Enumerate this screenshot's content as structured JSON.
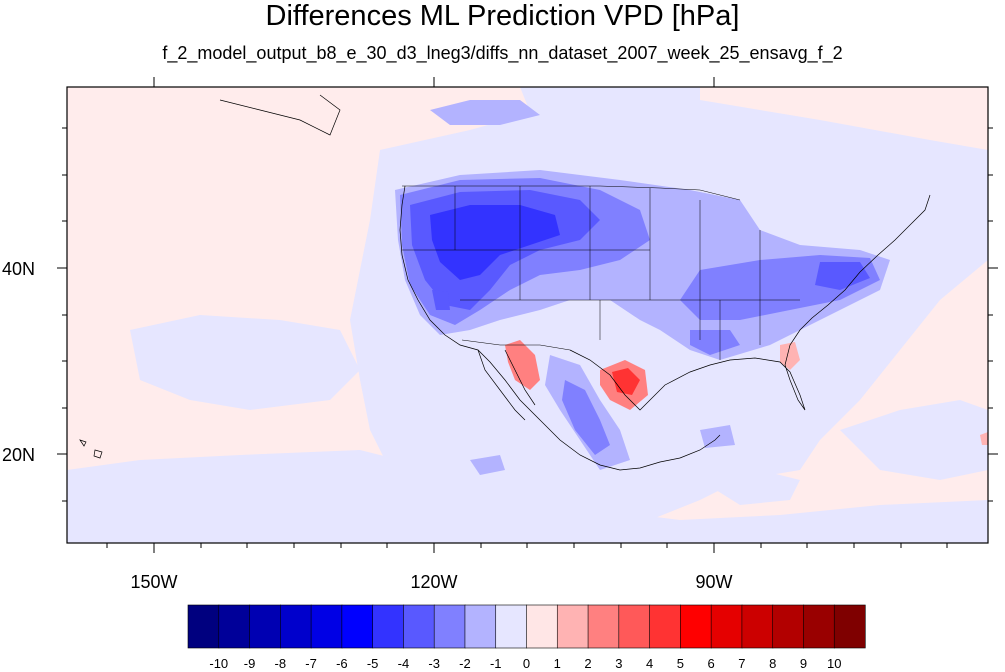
{
  "title": "Differences ML Prediction VPD [hPa]",
  "subtitle": "f_2_model_output_b8_e_30_d3_lneg3/diffs_nn_dataset_2007_week_25_ensavg_f_2",
  "lon_labels": [
    "150W",
    "120W",
    "90W"
  ],
  "lat_labels": [
    "40N",
    "20N"
  ],
  "colorbar": {
    "labels": [
      "-10",
      "-9",
      "-8",
      "-7",
      "-6",
      "-5",
      "-4",
      "-3",
      "-2",
      "-1",
      "0",
      "1",
      "2",
      "3",
      "4",
      "5",
      "6",
      "7",
      "8",
      "9",
      "10"
    ],
    "colors": [
      "#00007f",
      "#000099",
      "#0000b2",
      "#0000cc",
      "#0000e5",
      "#0000ff",
      "#3333ff",
      "#5959ff",
      "#8080ff",
      "#b3b3ff",
      "#e6e6ff",
      "#ffe6e6",
      "#ffb3b3",
      "#ff8080",
      "#ff5959",
      "#ff3333",
      "#ff0000",
      "#e50000",
      "#cc0000",
      "#b20000",
      "#990000",
      "#7f0000"
    ]
  },
  "map_palette": {
    "ocean_background": "#ffecec",
    "land_background": "#e6e6ff",
    "coastline": "#000000"
  }
}
